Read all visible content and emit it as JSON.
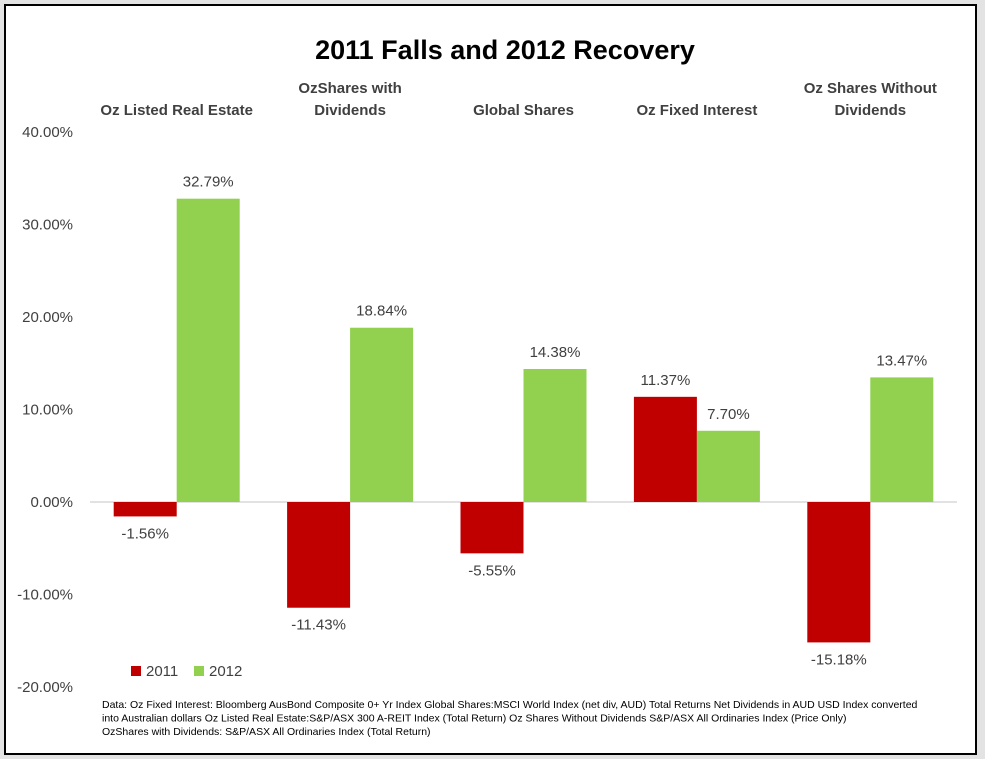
{
  "chart_data": {
    "type": "bar",
    "title": "2011 Falls and 2012 Recovery",
    "categories": [
      "Oz Listed Real Estate",
      "OzShares with Dividends",
      "Global Shares",
      "Oz Fixed Interest",
      "Oz Shares Without Dividends"
    ],
    "category_label_lines": [
      [
        "Oz Listed Real Estate"
      ],
      [
        "OzShares with",
        "Dividends"
      ],
      [
        "Global Shares"
      ],
      [
        "Oz Fixed Interest"
      ],
      [
        "Oz Shares Without",
        "Dividends"
      ]
    ],
    "series": [
      {
        "name": "2011",
        "color": "#c00000",
        "values": [
          -1.56,
          -11.43,
          -5.55,
          11.37,
          -15.18
        ],
        "labels": [
          "-1.56%",
          "-11.43%",
          "-5.55%",
          "11.37%",
          "-15.18%"
        ]
      },
      {
        "name": "2012",
        "color": "#92d050",
        "values": [
          32.79,
          18.84,
          14.38,
          7.7,
          13.47
        ],
        "labels": [
          "32.79%",
          "18.84%",
          "14.38%",
          "7.70%",
          "13.47%"
        ]
      }
    ],
    "ylim": [
      -20,
      40
    ],
    "yticks": [
      40,
      30,
      20,
      10,
      0,
      -10,
      -20
    ],
    "ytick_labels": [
      "40.00%",
      "30.00%",
      "20.00%",
      "10.00%",
      "0.00%",
      "-10.00%",
      "-20.00%"
    ],
    "xlabel": "",
    "ylabel": "",
    "grid": false,
    "legend_position": "bottom-left",
    "axis_color": "#d9d9d9",
    "annotation_lines": [
      "Data: Oz Fixed Interest: Bloomberg AusBond Composite 0+ Yr Index Global Shares:MSCI World Index (net div, AUD) Total Returns Net Dividends in AUD USD Index converted",
      "into Australian dollars Oz Listed Real Estate:S&P/ASX 300 A-REIT Index (Total Return) Oz Shares Without Dividends S&P/ASX All Ordinaries Index (Price Only)",
      "OzShares with Dividends: S&P/ASX All Ordinaries Index (Total Return)"
    ]
  }
}
